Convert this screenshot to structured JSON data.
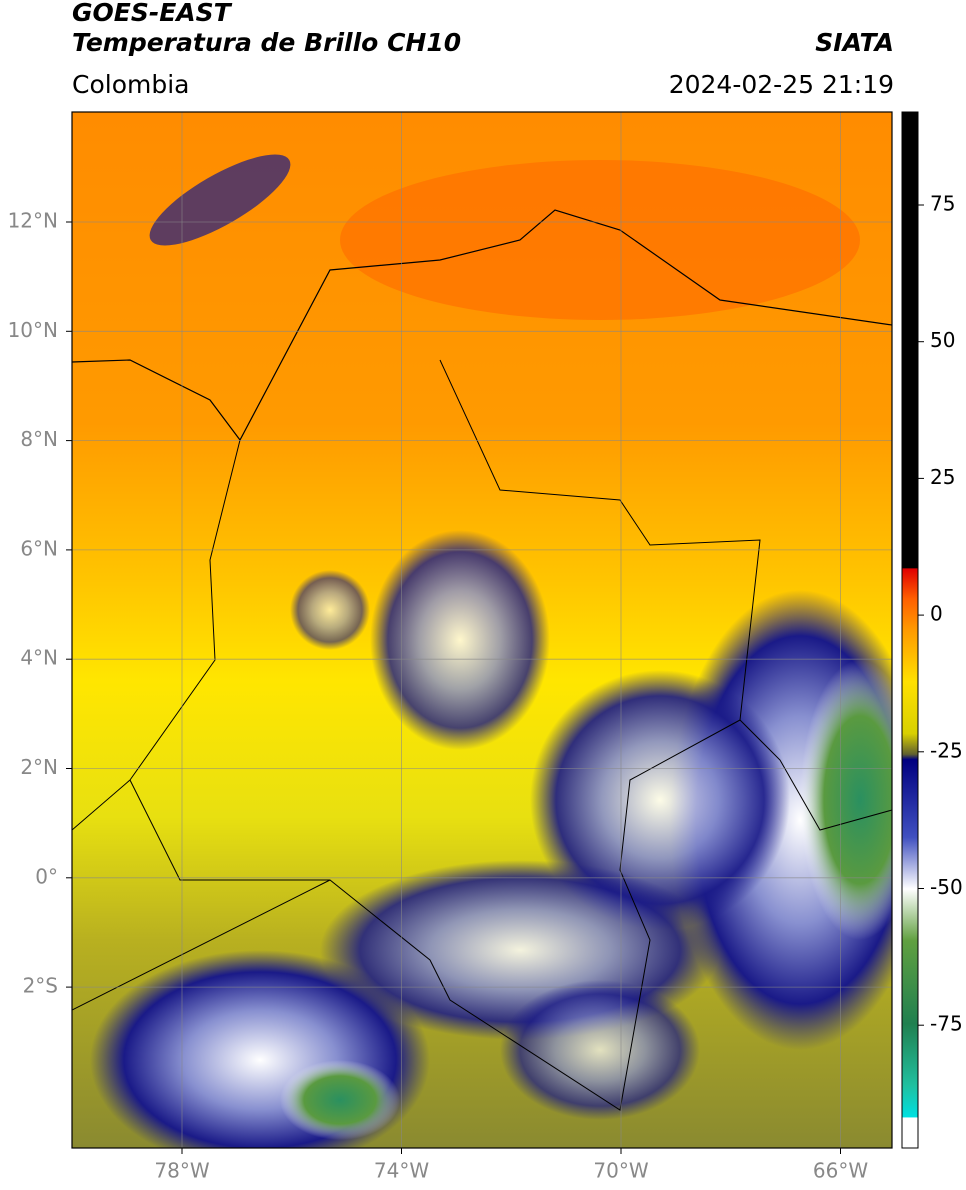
{
  "header": {
    "title": "GOES-EAST",
    "subtitle": "Temperatura de Brillo CH10",
    "source": "SIATA",
    "region": "Colombia",
    "timestamp": "2024-02-25 21:19"
  },
  "map": {
    "lat_labels": [
      "12°N",
      "10°N",
      "8°N",
      "6°N",
      "4°N",
      "2°N",
      "0°",
      "2°S"
    ],
    "lon_labels": [
      "78°W",
      "74°W",
      "70°W",
      "66°W"
    ]
  },
  "colorbar": {
    "ticks": [
      "75",
      "50",
      "25",
      "0",
      "-25",
      "-50",
      "-75"
    ]
  }
}
